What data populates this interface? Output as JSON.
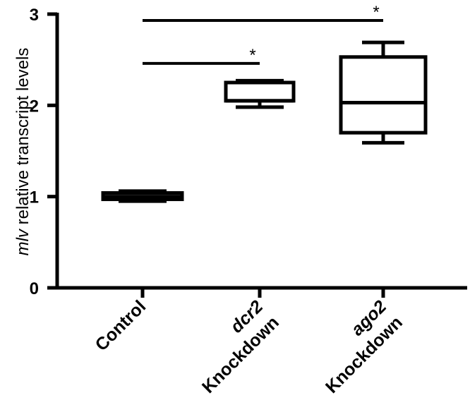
{
  "chart_data": {
    "type": "box",
    "ylabel_italic": "mlv",
    "ylabel": " relative transcript levels",
    "ylim": [
      0,
      3
    ],
    "yticks": [
      "0",
      "1",
      "2",
      "3"
    ],
    "categories": [
      {
        "line1": "Control",
        "line1_italic": false,
        "line2": ""
      },
      {
        "line1": "dcr2",
        "line1_italic": true,
        "line2": "Knockdown"
      },
      {
        "line1": "ago2",
        "line1_italic": true,
        "line2": "Knockdown"
      }
    ],
    "boxes": [
      {
        "min": 0.95,
        "q1": 0.97,
        "median": 1.0,
        "q3": 1.04,
        "max": 1.06
      },
      {
        "min": 1.98,
        "q1": 2.05,
        "median": 2.05,
        "q3": 2.25,
        "max": 2.27
      },
      {
        "min": 1.59,
        "q1": 1.7,
        "median": 2.03,
        "q3": 2.53,
        "max": 2.69
      }
    ],
    "significance": [
      {
        "from": 0,
        "to": 1,
        "y": 2.46,
        "label": "*"
      },
      {
        "from": 0,
        "to": 2,
        "y": 2.93,
        "label": "*"
      }
    ],
    "grid": false,
    "legend": "none"
  }
}
